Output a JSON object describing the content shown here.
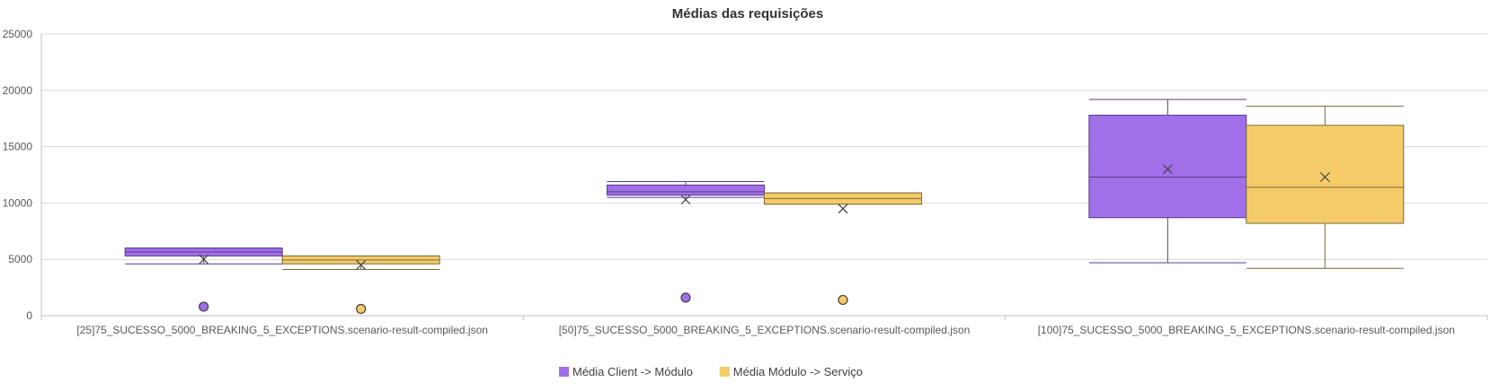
{
  "chart_data": {
    "type": "boxplot",
    "title": "Médias das requisições",
    "xlabel": "",
    "ylabel": "",
    "ylim": [
      0,
      25000
    ],
    "yticks": [
      0,
      5000,
      10000,
      15000,
      20000,
      25000
    ],
    "grid": true,
    "legend_position": "bottom",
    "categories": [
      "[25]75_SUCESSO_5000_BREAKING_5_EXCEPTIONS.scenario-result-compiled.json",
      "[50]75_SUCESSO_5000_BREAKING_5_EXCEPTIONS.scenario-result-compiled.json",
      "[100]75_SUCESSO_5000_BREAKING_5_EXCEPTIONS.scenario-result-compiled.json"
    ],
    "series": [
      {
        "name": "Média Client -> Módulo",
        "color": "#a070e8",
        "edge": "#5a3a8a",
        "boxes": [
          {
            "min": 4600,
            "q1": 5300,
            "median": 5650,
            "q3": 6000,
            "max": 6000,
            "mean": 5000,
            "outliers": [
              800
            ]
          },
          {
            "min": 10500,
            "q1": 10700,
            "median": 11000,
            "q3": 11600,
            "max": 11900,
            "mean": 10300,
            "outliers": [
              1600
            ]
          },
          {
            "min": 4700,
            "q1": 8700,
            "median": 12300,
            "q3": 17800,
            "max": 19200,
            "mean": 13000,
            "outliers": []
          }
        ]
      },
      {
        "name": "Média Módulo -> Serviço",
        "color": "#f5cb69",
        "edge": "#7a6a3a",
        "boxes": [
          {
            "min": 4100,
            "q1": 4600,
            "median": 4950,
            "q3": 5300,
            "max": 5300,
            "mean": 4500,
            "outliers": [
              600
            ]
          },
          {
            "min": 9900,
            "q1": 9900,
            "median": 10400,
            "q3": 10900,
            "max": 10900,
            "mean": 9500,
            "outliers": [
              1400
            ]
          },
          {
            "min": 4200,
            "q1": 8200,
            "median": 11400,
            "q3": 16900,
            "max": 18600,
            "mean": 12300,
            "outliers": []
          }
        ]
      }
    ]
  }
}
